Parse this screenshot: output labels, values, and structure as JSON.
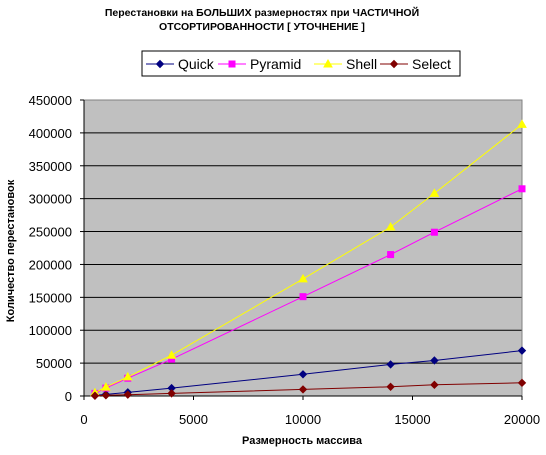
{
  "chart_data": {
    "type": "line",
    "title_lines": [
      "Перестановки на БОЛЬШИХ размерностях при ЧАСТИЧНОЙ",
      "ОТСОРТИРОВАННОСТИ [ УТОЧНЕНИЕ ]"
    ],
    "xlabel": "Размерность массива",
    "ylabel": "Количество перестановок",
    "xlim": [
      0,
      20000
    ],
    "ylim": [
      0,
      450000
    ],
    "x_ticks": [
      0,
      5000,
      10000,
      15000,
      20000
    ],
    "y_ticks": [
      0,
      50000,
      100000,
      150000,
      200000,
      250000,
      300000,
      350000,
      400000,
      450000
    ],
    "grid": "horizontal",
    "legend_position": "top",
    "x": [
      500,
      1000,
      2000,
      4000,
      10000,
      14000,
      16000,
      20000
    ],
    "series": [
      {
        "name": "Quick",
        "color": "#000080",
        "marker": "diamond",
        "values": [
          1000,
          2500,
          5500,
          12000,
          33000,
          48000,
          54000,
          69000
        ]
      },
      {
        "name": "Pyramid",
        "color": "#ff00ff",
        "marker": "square",
        "values": [
          4000,
          12000,
          27000,
          56000,
          151000,
          215000,
          249000,
          315000
        ]
      },
      {
        "name": "Shell",
        "color": "#ffff00",
        "marker": "triangle",
        "values": [
          5000,
          13500,
          29000,
          62000,
          178000,
          257000,
          308000,
          413000
        ]
      },
      {
        "name": "Select",
        "color": "#800000",
        "marker": "diamond",
        "values": [
          400,
          1000,
          2000,
          4000,
          10000,
          14000,
          17000,
          20000
        ]
      }
    ],
    "plot_background": "#c0c0c0"
  }
}
